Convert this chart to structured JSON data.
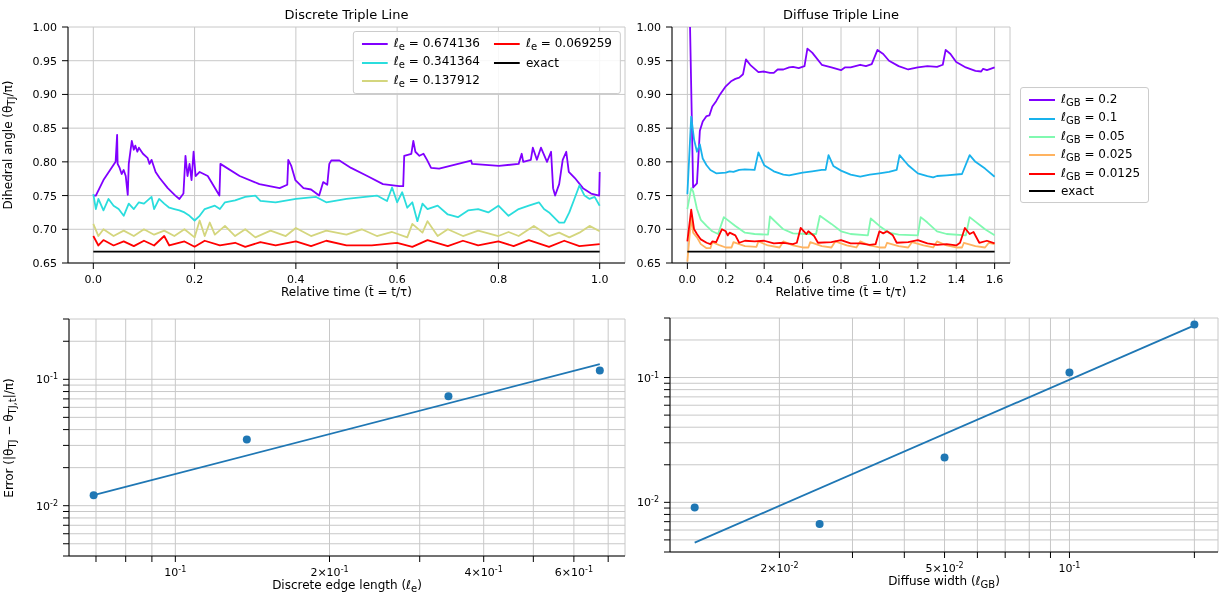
{
  "chart_data": [
    {
      "type": "line",
      "title": "Discrete Triple Line",
      "xlabel": "Relative time (t̃ = t/τ)",
      "ylabel": "Dihedral angle (θ$_{TJ}$/π)",
      "xlim": [
        -0.05,
        1.05
      ],
      "xticks": [
        {
          "value": 0,
          "label": "0.0"
        },
        0.2,
        0.4,
        0.6,
        0.8,
        {
          "value": 1,
          "label": "1.0"
        }
      ],
      "ylim": [
        0.65,
        1.0
      ],
      "yticks": [
        0.65,
        {
          "value": 0.7,
          "label": "0.70"
        },
        0.75,
        {
          "value": 0.8,
          "label": "0.80"
        },
        0.85,
        {
          "value": 0.9,
          "label": "0.90"
        },
        0.95,
        {
          "value": 1,
          "label": "1.00"
        }
      ],
      "grid": true,
      "legend": "top right",
      "line_style": "solid",
      "marker": "none",
      "series": [
        {
          "name": "ℓ$_{e}$ = 0.674136",
          "color": "#8000ff",
          "x": [
            0,
            0.005,
            0.02,
            0.044,
            0.047,
            0.048,
            0.052,
            0.056,
            0.06,
            0.064,
            0.068,
            0.07,
            0.076,
            0.08,
            0.083,
            0.087,
            0.09,
            0.098,
            0.107,
            0.111,
            0.115,
            0.123,
            0.131,
            0.147,
            0.162,
            0.17,
            0.178,
            0.182,
            0.186,
            0.19,
            0.194,
            0.198,
            0.202,
            0.21,
            0.218,
            0.226,
            0.249,
            0.251,
            0.289,
            0.328,
            0.368,
            0.383,
            0.385,
            0.391,
            0.399,
            0.415,
            0.43,
            0.446,
            0.454,
            0.462,
            0.466,
            0.47,
            0.486,
            0.509,
            0.541,
            0.572,
            0.604,
            0.612,
            0.614,
            0.628,
            0.632,
            0.636,
            0.644,
            0.652,
            0.659,
            0.667,
            0.683,
            0.746,
            0.748,
            0.801,
            0.84,
            0.846,
            0.849,
            0.864,
            0.868,
            0.876,
            0.884,
            0.896,
            0.904,
            0.908,
            0.912,
            0.92,
            0.927,
            0.934,
            0.939,
            0.951,
            0.967,
            0.983,
            0.999,
            1.0
          ],
          "values": [
            0.75,
            0.75,
            0.773,
            0.8,
            0.84,
            0.797,
            0.791,
            0.782,
            0.788,
            0.779,
            0.751,
            0.797,
            0.831,
            0.818,
            0.824,
            0.815,
            0.821,
            0.812,
            0.806,
            0.797,
            0.803,
            0.785,
            0.776,
            0.761,
            0.75,
            0.745,
            0.753,
            0.809,
            0.779,
            0.797,
            0.773,
            0.815,
            0.779,
            0.785,
            0.782,
            0.779,
            0.75,
            0.797,
            0.779,
            0.767,
            0.761,
            0.766,
            0.803,
            0.794,
            0.773,
            0.761,
            0.759,
            0.75,
            0.77,
            0.766,
            0.797,
            0.802,
            0.802,
            0.791,
            0.779,
            0.767,
            0.764,
            0.764,
            0.809,
            0.812,
            0.831,
            0.815,
            0.809,
            0.812,
            0.803,
            0.791,
            0.79,
            0.802,
            0.797,
            0.794,
            0.797,
            0.812,
            0.8,
            0.803,
            0.821,
            0.803,
            0.821,
            0.8,
            0.815,
            0.761,
            0.75,
            0.767,
            0.803,
            0.815,
            0.785,
            0.776,
            0.761,
            0.753,
            0.75,
            0.785
          ]
        },
        {
          "name": "ℓ$_{e}$ = 0.341364",
          "color": "#2adddd",
          "x": [
            0,
            0.005,
            0.01,
            0.02,
            0.03,
            0.04,
            0.05,
            0.06,
            0.07,
            0.08,
            0.09,
            0.1,
            0.115,
            0.12,
            0.13,
            0.14,
            0.15,
            0.16,
            0.17,
            0.18,
            0.19,
            0.2,
            0.21,
            0.22,
            0.24,
            0.25,
            0.26,
            0.28,
            0.3,
            0.32,
            0.33,
            0.36,
            0.4,
            0.44,
            0.46,
            0.5,
            0.56,
            0.58,
            0.59,
            0.6,
            0.61,
            0.62,
            0.63,
            0.64,
            0.65,
            0.66,
            0.68,
            0.7,
            0.72,
            0.74,
            0.76,
            0.78,
            0.8,
            0.82,
            0.84,
            0.86,
            0.88,
            0.89,
            0.9,
            0.92,
            0.93,
            0.94,
            0.95,
            0.96,
            0.97,
            0.98,
            0.99,
            1.0
          ],
          "values": [
            0.752,
            0.73,
            0.745,
            0.728,
            0.745,
            0.735,
            0.73,
            0.72,
            0.738,
            0.73,
            0.74,
            0.738,
            0.748,
            0.73,
            0.745,
            0.738,
            0.732,
            0.73,
            0.728,
            0.725,
            0.72,
            0.713,
            0.72,
            0.73,
            0.735,
            0.73,
            0.74,
            0.743,
            0.748,
            0.75,
            0.742,
            0.74,
            0.745,
            0.748,
            0.74,
            0.745,
            0.75,
            0.742,
            0.762,
            0.74,
            0.755,
            0.732,
            0.74,
            0.712,
            0.738,
            0.73,
            0.735,
            0.722,
            0.718,
            0.728,
            0.73,
            0.725,
            0.735,
            0.72,
            0.73,
            0.735,
            0.74,
            0.73,
            0.725,
            0.71,
            0.71,
            0.725,
            0.745,
            0.765,
            0.75,
            0.745,
            0.748,
            0.735
          ]
        },
        {
          "name": "ℓ$_{e}$ = 0.137912",
          "color": "#d4d67e",
          "x": [
            0,
            0.01,
            0.02,
            0.04,
            0.06,
            0.08,
            0.1,
            0.12,
            0.14,
            0.16,
            0.18,
            0.2,
            0.21,
            0.22,
            0.23,
            0.24,
            0.26,
            0.28,
            0.3,
            0.32,
            0.35,
            0.38,
            0.4,
            0.43,
            0.46,
            0.5,
            0.53,
            0.56,
            0.59,
            0.62,
            0.63,
            0.65,
            0.66,
            0.68,
            0.7,
            0.73,
            0.76,
            0.8,
            0.82,
            0.84,
            0.87,
            0.9,
            0.92,
            0.94,
            0.96,
            0.98,
            1.0
          ],
          "values": [
            0.708,
            0.69,
            0.7,
            0.69,
            0.698,
            0.69,
            0.7,
            0.692,
            0.698,
            0.69,
            0.7,
            0.688,
            0.713,
            0.69,
            0.71,
            0.692,
            0.705,
            0.69,
            0.7,
            0.688,
            0.698,
            0.69,
            0.702,
            0.69,
            0.698,
            0.692,
            0.7,
            0.69,
            0.696,
            0.688,
            0.708,
            0.695,
            0.712,
            0.69,
            0.7,
            0.69,
            0.698,
            0.69,
            0.696,
            0.69,
            0.705,
            0.69,
            0.695,
            0.688,
            0.695,
            0.705,
            0.697
          ]
        },
        {
          "name": "ℓ$_{e}$ = 0.069259",
          "color": "#ff0000",
          "x": [
            0,
            0.01,
            0.02,
            0.04,
            0.06,
            0.08,
            0.1,
            0.12,
            0.14,
            0.15,
            0.18,
            0.2,
            0.22,
            0.25,
            0.28,
            0.3,
            0.33,
            0.36,
            0.4,
            0.43,
            0.46,
            0.5,
            0.55,
            0.6,
            0.63,
            0.66,
            0.7,
            0.73,
            0.76,
            0.8,
            0.83,
            0.86,
            0.9,
            0.93,
            0.96,
            1.0
          ],
          "values": [
            0.69,
            0.676,
            0.684,
            0.676,
            0.682,
            0.675,
            0.683,
            0.676,
            0.69,
            0.676,
            0.682,
            0.674,
            0.683,
            0.676,
            0.68,
            0.674,
            0.681,
            0.676,
            0.682,
            0.675,
            0.683,
            0.676,
            0.676,
            0.68,
            0.674,
            0.684,
            0.675,
            0.683,
            0.676,
            0.682,
            0.675,
            0.684,
            0.674,
            0.683,
            0.675,
            0.678
          ]
        },
        {
          "name": "exact",
          "color": "#000000",
          "x": [
            0,
            1
          ],
          "values": [
            0.667,
            0.667
          ]
        }
      ]
    },
    {
      "type": "line",
      "title": "Diffuse Triple Line",
      "xlabel": "Relative time (t̃ = t/τ)",
      "xlim": [
        -0.08,
        1.68
      ],
      "xticks": [
        {
          "value": 0,
          "label": "0.0"
        },
        0.2,
        0.4,
        0.6,
        0.8,
        {
          "value": 1,
          "label": "1.0"
        },
        1.2,
        1.4,
        1.6
      ],
      "ylim": [
        0.65,
        1.0
      ],
      "yticks": [
        0.65,
        {
          "value": 0.7,
          "label": "0.70"
        },
        0.75,
        {
          "value": 0.8,
          "label": "0.80"
        },
        0.85,
        {
          "value": 0.9,
          "label": "0.90"
        },
        0.95,
        {
          "value": 1,
          "label": "1.00"
        }
      ],
      "grid": true,
      "legend": "right",
      "line_style": "solid",
      "marker": "none",
      "series": [
        {
          "name": "ℓ$_{GB}$ = 0.2",
          "color": "#8000ff",
          "x": [
            0.014,
            0.03,
            0.05,
            0.065,
            0.08,
            0.1,
            0.115,
            0.13,
            0.15,
            0.17,
            0.2,
            0.23,
            0.25,
            0.27,
            0.29,
            0.305,
            0.33,
            0.37,
            0.4,
            0.43,
            0.45,
            0.47,
            0.5,
            0.53,
            0.55,
            0.58,
            0.61,
            0.625,
            0.65,
            0.7,
            0.75,
            0.8,
            0.82,
            0.85,
            0.9,
            0.93,
            0.96,
            0.99,
            1.02,
            1.05,
            1.1,
            1.15,
            1.2,
            1.25,
            1.3,
            1.33,
            1.345,
            1.37,
            1.4,
            1.45,
            1.5,
            1.53,
            1.54,
            1.56,
            1.6
          ],
          "values": [
            1.0,
            0.762,
            0.768,
            0.846,
            0.86,
            0.868,
            0.869,
            0.882,
            0.89,
            0.9,
            0.912,
            0.92,
            0.923,
            0.925,
            0.93,
            0.952,
            0.943,
            0.933,
            0.934,
            0.932,
            0.932,
            0.937,
            0.937,
            0.94,
            0.941,
            0.939,
            0.942,
            0.968,
            0.962,
            0.944,
            0.94,
            0.936,
            0.94,
            0.94,
            0.944,
            0.942,
            0.945,
            0.966,
            0.96,
            0.95,
            0.942,
            0.937,
            0.94,
            0.942,
            0.941,
            0.944,
            0.966,
            0.96,
            0.948,
            0.94,
            0.935,
            0.934,
            0.938,
            0.936,
            0.94
          ]
        },
        {
          "name": "ℓ$_{GB}$ = 0.1",
          "color": "#18b2ec",
          "x": [
            0,
            0.02,
            0.035,
            0.05,
            0.065,
            0.08,
            0.1,
            0.12,
            0.15,
            0.2,
            0.22,
            0.24,
            0.27,
            0.3,
            0.35,
            0.37,
            0.4,
            0.45,
            0.5,
            0.53,
            0.6,
            0.65,
            0.7,
            0.72,
            0.735,
            0.76,
            0.8,
            0.85,
            0.9,
            0.95,
            1.0,
            1.05,
            1.09,
            1.105,
            1.15,
            1.2,
            1.25,
            1.28,
            1.3,
            1.35,
            1.43,
            1.47,
            1.5,
            1.55,
            1.6
          ],
          "values": [
            0.752,
            0.867,
            0.833,
            0.815,
            0.826,
            0.805,
            0.795,
            0.788,
            0.783,
            0.784,
            0.786,
            0.785,
            0.788,
            0.789,
            0.788,
            0.814,
            0.795,
            0.786,
            0.781,
            0.78,
            0.784,
            0.786,
            0.788,
            0.788,
            0.81,
            0.794,
            0.787,
            0.781,
            0.778,
            0.781,
            0.783,
            0.785,
            0.788,
            0.81,
            0.795,
            0.783,
            0.779,
            0.777,
            0.779,
            0.78,
            0.782,
            0.81,
            0.8,
            0.79,
            0.778
          ]
        },
        {
          "name": "ℓ$_{GB}$ = 0.05",
          "color": "#80f9b0",
          "x": [
            0,
            0.02,
            0.03,
            0.05,
            0.07,
            0.1,
            0.13,
            0.16,
            0.19,
            0.25,
            0.3,
            0.35,
            0.42,
            0.43,
            0.5,
            0.55,
            0.62,
            0.67,
            0.69,
            0.75,
            0.8,
            0.85,
            0.94,
            0.955,
            1.0,
            1.05,
            1.1,
            1.2,
            1.215,
            1.25,
            1.3,
            1.35,
            1.45,
            1.47,
            1.55,
            1.6
          ],
          "values": [
            0.73,
            0.761,
            0.756,
            0.73,
            0.714,
            0.705,
            0.697,
            0.693,
            0.718,
            0.705,
            0.695,
            0.693,
            0.692,
            0.719,
            0.7,
            0.694,
            0.693,
            0.693,
            0.72,
            0.708,
            0.697,
            0.693,
            0.691,
            0.716,
            0.705,
            0.695,
            0.692,
            0.691,
            0.718,
            0.71,
            0.697,
            0.693,
            0.691,
            0.718,
            0.7,
            0.691
          ]
        },
        {
          "name": "ℓ$_{GB}$ = 0.025",
          "color": "#ffb360",
          "x": [
            0,
            0.02,
            0.03,
            0.05,
            0.07,
            0.1,
            0.12,
            0.13,
            0.17,
            0.2,
            0.23,
            0.24,
            0.3,
            0.36,
            0.37,
            0.42,
            0.48,
            0.5,
            0.55,
            0.6,
            0.63,
            0.64,
            0.7,
            0.75,
            0.77,
            0.83,
            0.88,
            0.9,
            0.95,
            1.0,
            1.03,
            1.04,
            1.1,
            1.15,
            1.17,
            1.23,
            1.28,
            1.3,
            1.35,
            1.4,
            1.43,
            1.44,
            1.5,
            1.55,
            1.57,
            1.6
          ],
          "values": [
            0.652,
            0.718,
            0.695,
            0.688,
            0.678,
            0.672,
            0.672,
            0.681,
            0.676,
            0.673,
            0.673,
            0.681,
            0.675,
            0.674,
            0.682,
            0.676,
            0.673,
            0.682,
            0.676,
            0.673,
            0.673,
            0.681,
            0.675,
            0.673,
            0.682,
            0.676,
            0.673,
            0.682,
            0.676,
            0.673,
            0.673,
            0.68,
            0.675,
            0.673,
            0.681,
            0.676,
            0.673,
            0.682,
            0.676,
            0.673,
            0.673,
            0.68,
            0.675,
            0.673,
            0.68,
            0.678
          ]
        },
        {
          "name": "ℓ$_{GB}$ = 0.0125",
          "color": "#ff0000",
          "x": [
            0,
            0.02,
            0.035,
            0.05,
            0.07,
            0.1,
            0.12,
            0.13,
            0.15,
            0.17,
            0.18,
            0.2,
            0.21,
            0.22,
            0.25,
            0.27,
            0.3,
            0.35,
            0.4,
            0.45,
            0.5,
            0.55,
            0.57,
            0.59,
            0.62,
            0.63,
            0.66,
            0.68,
            0.75,
            0.8,
            0.85,
            0.9,
            0.95,
            0.98,
            1.0,
            1.02,
            1.04,
            1.07,
            1.09,
            1.15,
            1.2,
            1.25,
            1.3,
            1.35,
            1.4,
            1.42,
            1.445,
            1.47,
            1.49,
            1.52,
            1.56,
            1.6
          ],
          "values": [
            0.682,
            0.729,
            0.7,
            0.693,
            0.685,
            0.68,
            0.678,
            0.682,
            0.681,
            0.694,
            0.7,
            0.697,
            0.691,
            0.695,
            0.691,
            0.68,
            0.683,
            0.682,
            0.683,
            0.679,
            0.68,
            0.678,
            0.68,
            0.702,
            0.693,
            0.697,
            0.69,
            0.68,
            0.681,
            0.684,
            0.679,
            0.679,
            0.677,
            0.678,
            0.697,
            0.694,
            0.697,
            0.691,
            0.68,
            0.681,
            0.684,
            0.679,
            0.677,
            0.678,
            0.676,
            0.68,
            0.702,
            0.693,
            0.696,
            0.68,
            0.683,
            0.679
          ]
        },
        {
          "name": "exact",
          "color": "#000000",
          "x": [
            0,
            1.6
          ],
          "values": [
            0.667,
            0.667
          ]
        }
      ]
    },
    {
      "type": "scatter",
      "xlabel": "Discrete edge length (ℓ$_{e}$)",
      "ylabel": "Error (|θ$_{TJ}$ − θ$_{TJ,t}$|/π)",
      "log": "xy",
      "xlim": [
        0.062,
        0.755
      ],
      "xticks": [
        {
          "value": 0.07,
          "label": null
        },
        {
          "value": 0.08,
          "label": null
        },
        {
          "value": 0.09,
          "label": null
        },
        {
          "value": 0.1,
          "label": "10$^{-1}$"
        },
        {
          "value": 0.2,
          "label": "2×10$^{-1}$"
        },
        {
          "value": 0.3,
          "label": null
        },
        {
          "value": 0.4,
          "label": "4×10$^{-1}$"
        },
        {
          "value": 0.5,
          "label": null
        },
        {
          "value": 0.6,
          "label": "6×10$^{-1}$"
        },
        {
          "value": 0.7,
          "label": null
        }
      ],
      "ylim": [
        0.004,
        0.3
      ],
      "yticks": [
        {
          "value": 0.004,
          "label": null
        },
        {
          "value": 0.005,
          "label": null
        },
        {
          "value": 0.006,
          "label": null
        },
        {
          "value": 0.007,
          "label": null
        },
        {
          "value": 0.008,
          "label": null
        },
        {
          "value": 0.009,
          "label": null
        },
        {
          "value": 0.01,
          "label": "10$^{-2}$"
        },
        {
          "value": 0.02,
          "label": null
        },
        {
          "value": 0.03,
          "label": null
        },
        {
          "value": 0.04,
          "label": null
        },
        {
          "value": 0.05,
          "label": null
        },
        {
          "value": 0.06,
          "label": null
        },
        {
          "value": 0.07,
          "label": null
        },
        {
          "value": 0.08,
          "label": null
        },
        {
          "value": 0.09,
          "label": null
        },
        {
          "value": 0.1,
          "label": "10$^{-1}$"
        },
        {
          "value": 0.2,
          "label": null
        },
        {
          "value": 0.3,
          "label": null
        }
      ],
      "grid": true,
      "series": [
        {
          "marker": "circle",
          "color": "#1f77b4",
          "x": [
            0.069259,
            0.137912,
            0.341364,
            0.674136
          ],
          "values": [
            0.0121,
            0.0334,
            0.0736,
            0.1175
          ]
        },
        {
          "type": "line",
          "color": "#1f77b4",
          "x": [
            0.069259,
            0.674136
          ],
          "values": [
            0.0121,
            0.132
          ]
        }
      ]
    },
    {
      "type": "scatter",
      "xlabel": "Diffuse width (ℓ$_{GB}$)",
      "log": "xy",
      "xlim": [
        0.0109,
        0.228
      ],
      "xticks": [
        {
          "value": 0.02,
          "label": "2×10$^{-2}$"
        },
        {
          "value": 0.03,
          "label": null
        },
        {
          "value": 0.04,
          "label": null
        },
        {
          "value": 0.05,
          "label": "5×10$^{-2}$"
        },
        {
          "value": 0.06,
          "label": null
        },
        {
          "value": 0.07,
          "label": null
        },
        {
          "value": 0.08,
          "label": null
        },
        {
          "value": 0.09,
          "label": null
        },
        {
          "value": 0.1,
          "label": "10$^{-1}$"
        },
        {
          "value": 0.2,
          "label": null
        }
      ],
      "ylim": [
        0.004,
        0.3
      ],
      "yticks": [
        {
          "value": 0.004,
          "label": null
        },
        {
          "value": 0.005,
          "label": null
        },
        {
          "value": 0.006,
          "label": null
        },
        {
          "value": 0.007,
          "label": null
        },
        {
          "value": 0.008,
          "label": null
        },
        {
          "value": 0.009,
          "label": null
        },
        {
          "value": 0.01,
          "label": "10$^{-2}$"
        },
        {
          "value": 0.02,
          "label": null
        },
        {
          "value": 0.03,
          "label": null
        },
        {
          "value": 0.04,
          "label": null
        },
        {
          "value": 0.05,
          "label": null
        },
        {
          "value": 0.06,
          "label": null
        },
        {
          "value": 0.07,
          "label": null
        },
        {
          "value": 0.08,
          "label": null
        },
        {
          "value": 0.09,
          "label": null
        },
        {
          "value": 0.1,
          "label": "10$^{-1}$"
        },
        {
          "value": 0.2,
          "label": null
        },
        {
          "value": 0.3,
          "label": null
        }
      ],
      "grid": true,
      "series": [
        {
          "marker": "circle",
          "color": "#1f77b4",
          "x": [
            0.0125,
            0.025,
            0.05,
            0.1,
            0.2
          ],
          "values": [
            0.0091,
            0.0067,
            0.0229,
            0.1097,
            0.266
          ]
        },
        {
          "type": "line",
          "color": "#1f77b4",
          "x": [
            0.0125,
            0.2
          ],
          "values": [
            0.00475,
            0.262
          ]
        }
      ]
    }
  ]
}
